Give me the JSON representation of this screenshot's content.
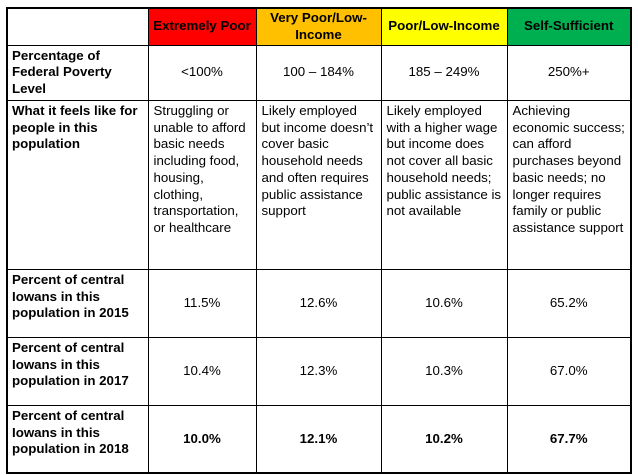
{
  "table": {
    "columns": [
      {
        "label": "",
        "color": "#FFFFFF"
      },
      {
        "label": "Extremely Poor",
        "color": "#FF0000"
      },
      {
        "label": "Very Poor/Low-Income",
        "color": "#FFC000"
      },
      {
        "label": "Poor/Low-Income",
        "color": "#FFFF00"
      },
      {
        "label": "Self-Sufficient",
        "color": "#00B050"
      }
    ],
    "rows": [
      {
        "label": "Percentage of Federal Poverty Level",
        "values": [
          "<100%",
          "100 – 184%",
          "185 – 249%",
          "250%+"
        ]
      },
      {
        "label": "What it feels like for people in this population",
        "values": [
          "Struggling or unable to afford basic needs including food, housing, clothing, transportation, or healthcare",
          "Likely employed but income doesn’t cover basic household needs and often requires public assistance support",
          "Likely employed with a higher wage but income does not cover all basic household needs; public assistance is not available",
          "Achieving economic success; can afford purchases beyond basic needs; no longer requires family or public assistance support"
        ]
      },
      {
        "label": "Percent of central Iowans in this population in 2015",
        "values": [
          "11.5%",
          "12.6%",
          "10.6%",
          "65.2%"
        ]
      },
      {
        "label": "Percent of central Iowans in this population in 2017",
        "values": [
          "10.4%",
          "12.3%",
          "10.3%",
          "67.0%"
        ]
      },
      {
        "label": "Percent of central Iowans in this population in 2018",
        "values": [
          "10.0%",
          "12.1%",
          "10.2%",
          "67.7%"
        ]
      }
    ]
  }
}
